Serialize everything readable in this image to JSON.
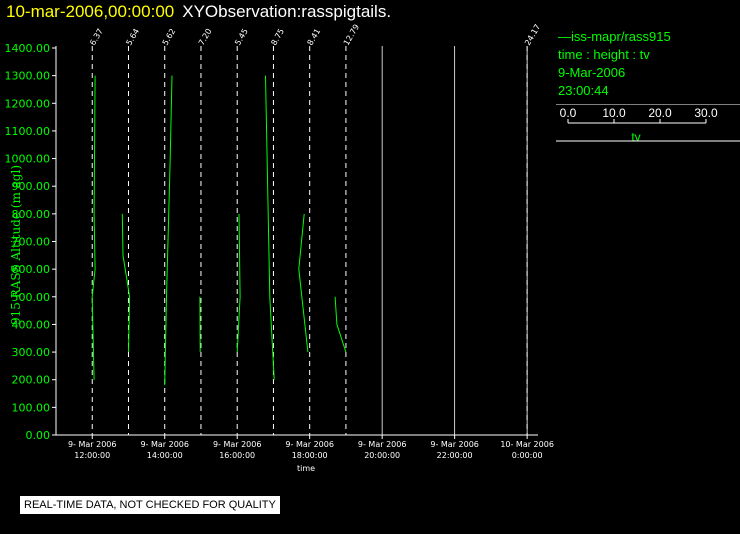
{
  "header": {
    "datetime": "10-mar-2006,00:00:00",
    "observation": "XYObservation:rasspigtails."
  },
  "legend": {
    "series": "iss-mapr/rass915",
    "vars": "time : height : tv",
    "date": "9-Mar-2006",
    "time": "23:00:44",
    "scale_ticks": [
      "0.0",
      "10.0",
      "20.0",
      "30.0"
    ],
    "scale_label": "tv"
  },
  "footer": "REAL-TIME DATA, NOT CHECKED FOR QUALITY",
  "colors": {
    "series": "#00ff00",
    "axis": "#ffffff",
    "title_date": "#ffff00",
    "background": "#000000"
  },
  "chart_data": {
    "type": "line",
    "ylabel": "915 RASS Altitude (m agl)",
    "xlabel": "time",
    "ylim": [
      0,
      1400
    ],
    "xlim_hours": [
      11,
      24.3
    ],
    "yticks": [
      "0.00",
      "100.00",
      "200.00",
      "300.00",
      "400.00",
      "500.00",
      "600.00",
      "700.00",
      "800.00",
      "900.00",
      "1000.00",
      "1100.00",
      "1200.00",
      "1300.00",
      "1400.00"
    ],
    "xticks": [
      {
        "h": 12,
        "line1": "9- Mar 2006",
        "line2": "12:00:00"
      },
      {
        "h": 14,
        "line1": "9- Mar 2006",
        "line2": "14:00:00"
      },
      {
        "h": 16,
        "line1": "9- Mar 2006",
        "line2": "16:00:00"
      },
      {
        "h": 18,
        "line1": "9- Mar 2006",
        "line2": "18:00:00"
      },
      {
        "h": 20,
        "line1": "9- Mar 2006",
        "line2": "20:00:00"
      },
      {
        "h": 22,
        "line1": "9- Mar 2006",
        "line2": "22:00:00"
      },
      {
        "h": 24,
        "line1": "10- Mar 2006",
        "line2": "0:00:00"
      }
    ],
    "grid_hours": [
      20,
      22,
      24
    ],
    "profiles": [
      {
        "h": 12.0,
        "label": "6.37",
        "points": [
          [
            12.05,
            200
          ],
          [
            12.0,
            500
          ],
          [
            12.08,
            600
          ],
          [
            12.05,
            800
          ],
          [
            12.08,
            1300
          ]
        ]
      },
      {
        "h": 13.0,
        "label": "5.64",
        "points": [
          [
            12.83,
            800
          ],
          [
            12.85,
            650
          ],
          [
            13.03,
            500
          ],
          [
            13.0,
            300
          ]
        ]
      },
      {
        "h": 14.0,
        "label": "5.62",
        "points": [
          [
            14.0,
            180
          ],
          [
            14.05,
            500
          ],
          [
            14.15,
            1000
          ],
          [
            14.2,
            1300
          ]
        ]
      },
      {
        "h": 15.0,
        "label": "7.20",
        "points": [
          [
            14.98,
            300
          ],
          [
            14.97,
            500
          ]
        ]
      },
      {
        "h": 16.0,
        "label": "5.45",
        "points": [
          [
            16.0,
            300
          ],
          [
            16.08,
            500
          ],
          [
            16.05,
            800
          ]
        ]
      },
      {
        "h": 17.0,
        "label": "8.75",
        "points": [
          [
            16.78,
            1300
          ],
          [
            16.9,
            500
          ],
          [
            17.02,
            200
          ]
        ]
      },
      {
        "h": 18.0,
        "label": "8.41",
        "points": [
          [
            17.95,
            300
          ],
          [
            17.7,
            600
          ],
          [
            17.85,
            800
          ]
        ]
      },
      {
        "h": 19.0,
        "label": "12.79",
        "points": [
          [
            18.7,
            500
          ],
          [
            18.75,
            400
          ],
          [
            19.0,
            300
          ]
        ]
      },
      {
        "h": 24.0,
        "label": "24.17",
        "points": []
      }
    ]
  }
}
